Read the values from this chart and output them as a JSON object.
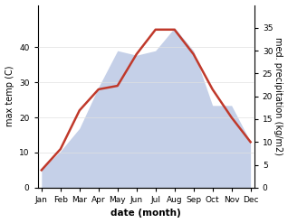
{
  "months": [
    "Jan",
    "Feb",
    "Mar",
    "Apr",
    "May",
    "Jun",
    "Jul",
    "Aug",
    "Sep",
    "Oct",
    "Nov",
    "Dec"
  ],
  "max_temp": [
    5,
    11,
    22,
    28,
    29,
    38,
    45,
    45,
    38,
    28,
    20,
    13
  ],
  "precipitation": [
    4,
    8,
    13,
    22,
    30,
    29,
    30,
    35,
    30,
    18,
    18,
    10
  ],
  "temp_color": "#c0392b",
  "precip_fill_color": "#c5d0e8",
  "precip_edge_color": "#b0bcd8",
  "temp_ylim": [
    0,
    52
  ],
  "precip_ylim": [
    0,
    40
  ],
  "temp_yticks": [
    0,
    10,
    20,
    30,
    40
  ],
  "precip_yticks": [
    0,
    5,
    10,
    15,
    20,
    25,
    30,
    35
  ],
  "ylabel_left": "max temp (C)",
  "ylabel_right": "med. precipitation (kg/m2)",
  "xlabel": "date (month)",
  "bg_color": "#ffffff",
  "line_width": 1.8,
  "temp_fontsize": 7,
  "xlabel_fontsize": 7.5,
  "tick_fontsize": 6.5
}
